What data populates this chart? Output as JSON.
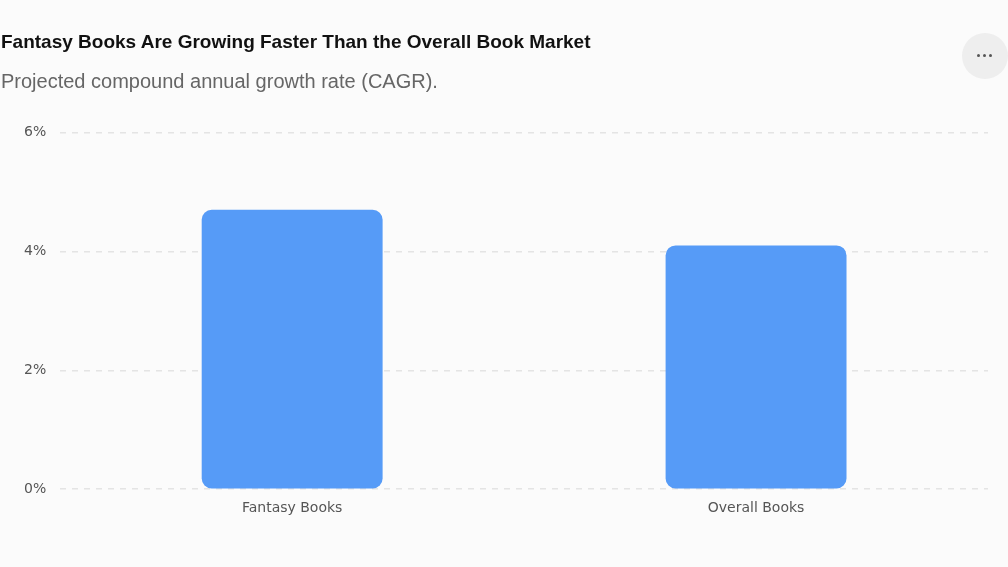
{
  "chart_data": {
    "type": "bar",
    "title": "Fantasy Books Are Growing Faster Than the Overall Book Market",
    "subtitle": "Projected compound annual growth rate (CAGR).",
    "categories": [
      "Fantasy Books",
      "Overall Books"
    ],
    "values": [
      4.7,
      4.1
    ],
    "color": "#569bf7",
    "ylim": [
      0,
      6
    ],
    "yticks": [
      {
        "value": 0,
        "label": "0%"
      },
      {
        "value": 2,
        "label": "2%"
      },
      {
        "value": 4,
        "label": "4%"
      },
      {
        "value": 6,
        "label": "6%"
      }
    ],
    "grid": "y"
  }
}
